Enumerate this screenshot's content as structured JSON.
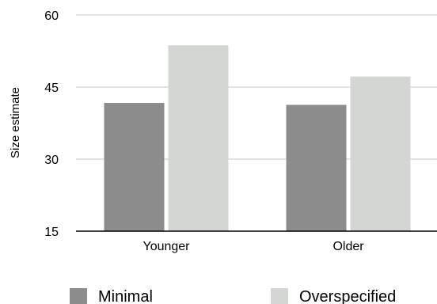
{
  "chart_data": {
    "type": "bar",
    "categories": [
      "Younger",
      "Older"
    ],
    "series": [
      {
        "name": "Minimal",
        "values": [
          41.7,
          41.3
        ],
        "color": "#8c8c8c"
      },
      {
        "name": "Overspecified",
        "values": [
          53.7,
          47.2
        ],
        "color": "#d3d6d3"
      }
    ],
    "title": "",
    "xlabel": "",
    "ylabel": "Size estimate",
    "ylim": [
      15,
      60
    ],
    "yticks": [
      15,
      30,
      45,
      60
    ],
    "grid": true,
    "legend": "bottom",
    "colors": {
      "grid": "#c8c8c8",
      "axis": "#000000"
    }
  }
}
